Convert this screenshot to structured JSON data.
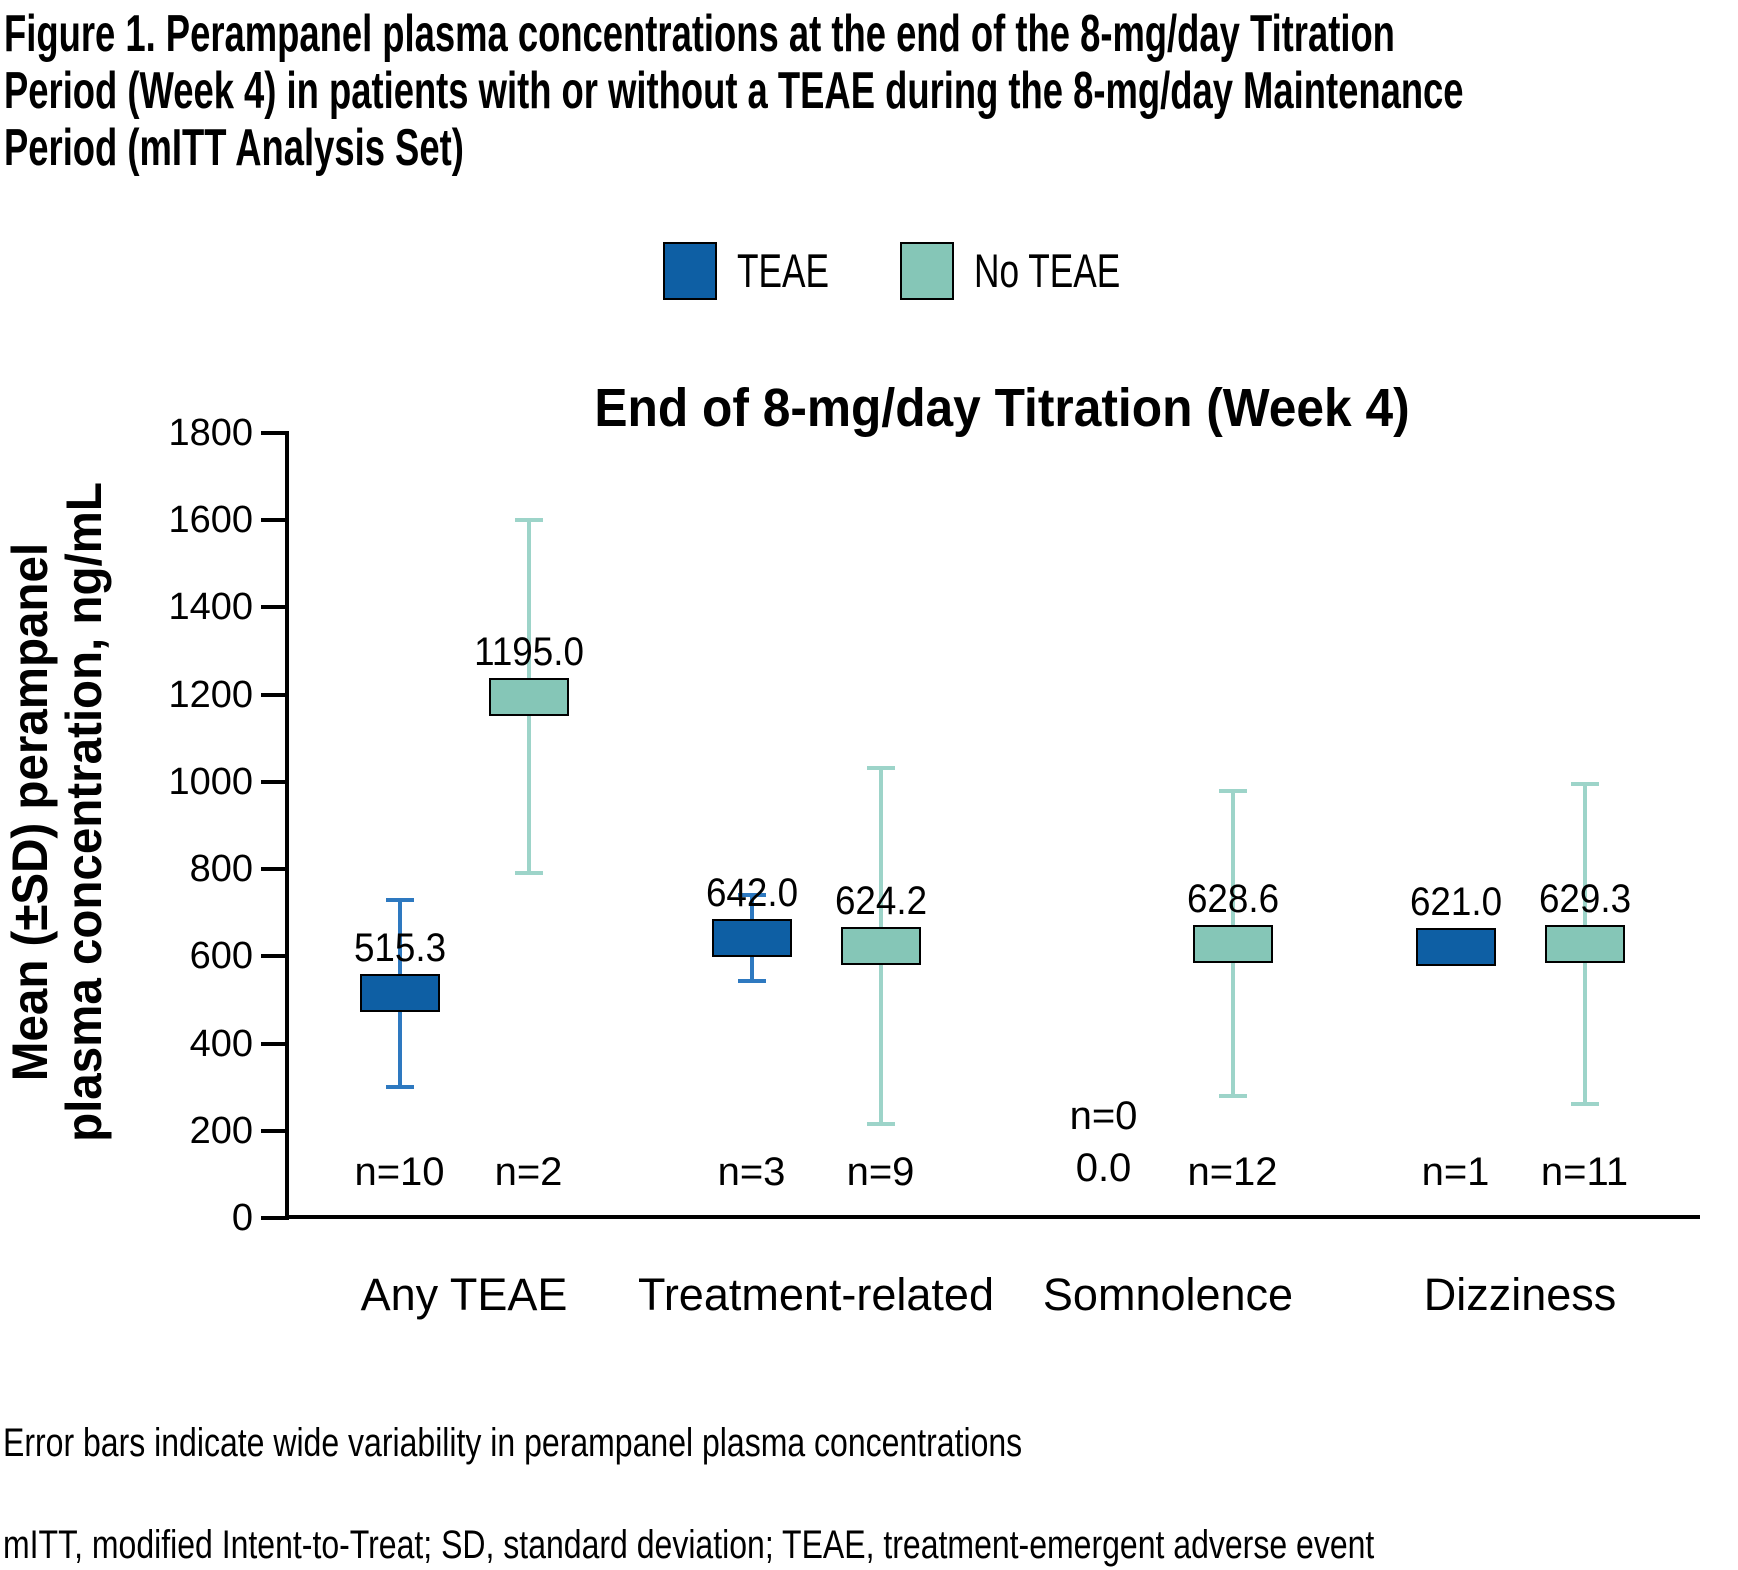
{
  "figure": {
    "title_lines": [
      "Figure 1. Perampanel plasma concentrations at the end of the 8-mg/day Titration",
      "Period (Week 4) in patients with or without a TEAE during the 8-mg/day Maintenance",
      "Period (mITT Analysis Set)"
    ],
    "footnote_errorbars": "Error bars indicate wide variability in perampanel plasma concentrations",
    "footnote_abbreviations": "mITT, modified Intent-to-Treat; SD, standard deviation; TEAE, treatment-emergent adverse event"
  },
  "chart_data": {
    "type": "bar",
    "subtype": "mean-box-with-sd-error-bars",
    "title": "End of 8-mg/day Titration (Week 4)",
    "ylabel_lines": [
      "Mean (±SD) perampanel",
      "plasma concentration, ng/mL"
    ],
    "ylim": [
      0,
      1800
    ],
    "ytick_step": 200,
    "grid": false,
    "legend_position": "top-center",
    "categories": [
      "Any TEAE",
      "Treatment-related",
      "Somnolence",
      "Dizziness"
    ],
    "series": [
      {
        "name": "TEAE",
        "color": "#0e5fa4",
        "whisker_color": "#2e79c0",
        "points": [
          {
            "mean": 515.3,
            "sd": 215,
            "value_label": "515.3",
            "n_label": "n=10"
          },
          {
            "mean": 642.0,
            "sd": 98,
            "value_label": "642.0",
            "n_label": "n=3"
          },
          {
            "mean": null,
            "sd": null,
            "value_label": "0.0",
            "n_label": "n=0"
          },
          {
            "mean": 621.0,
            "sd": null,
            "value_label": "621.0",
            "n_label": "n=1"
          }
        ]
      },
      {
        "name": "No TEAE",
        "color": "#85c6b7",
        "whisker_color": "#9dd4c9",
        "points": [
          {
            "mean": 1195.0,
            "sd": 405,
            "value_label": "1195.0",
            "n_label": "n=2"
          },
          {
            "mean": 624.2,
            "sd": 408,
            "value_label": "624.2",
            "n_label": "n=9"
          },
          {
            "mean": 628.6,
            "sd": 350,
            "value_label": "628.6",
            "n_label": "n=12"
          },
          {
            "mean": 629.3,
            "sd": 367,
            "value_label": "629.3",
            "n_label": "n=11"
          }
        ]
      }
    ]
  }
}
